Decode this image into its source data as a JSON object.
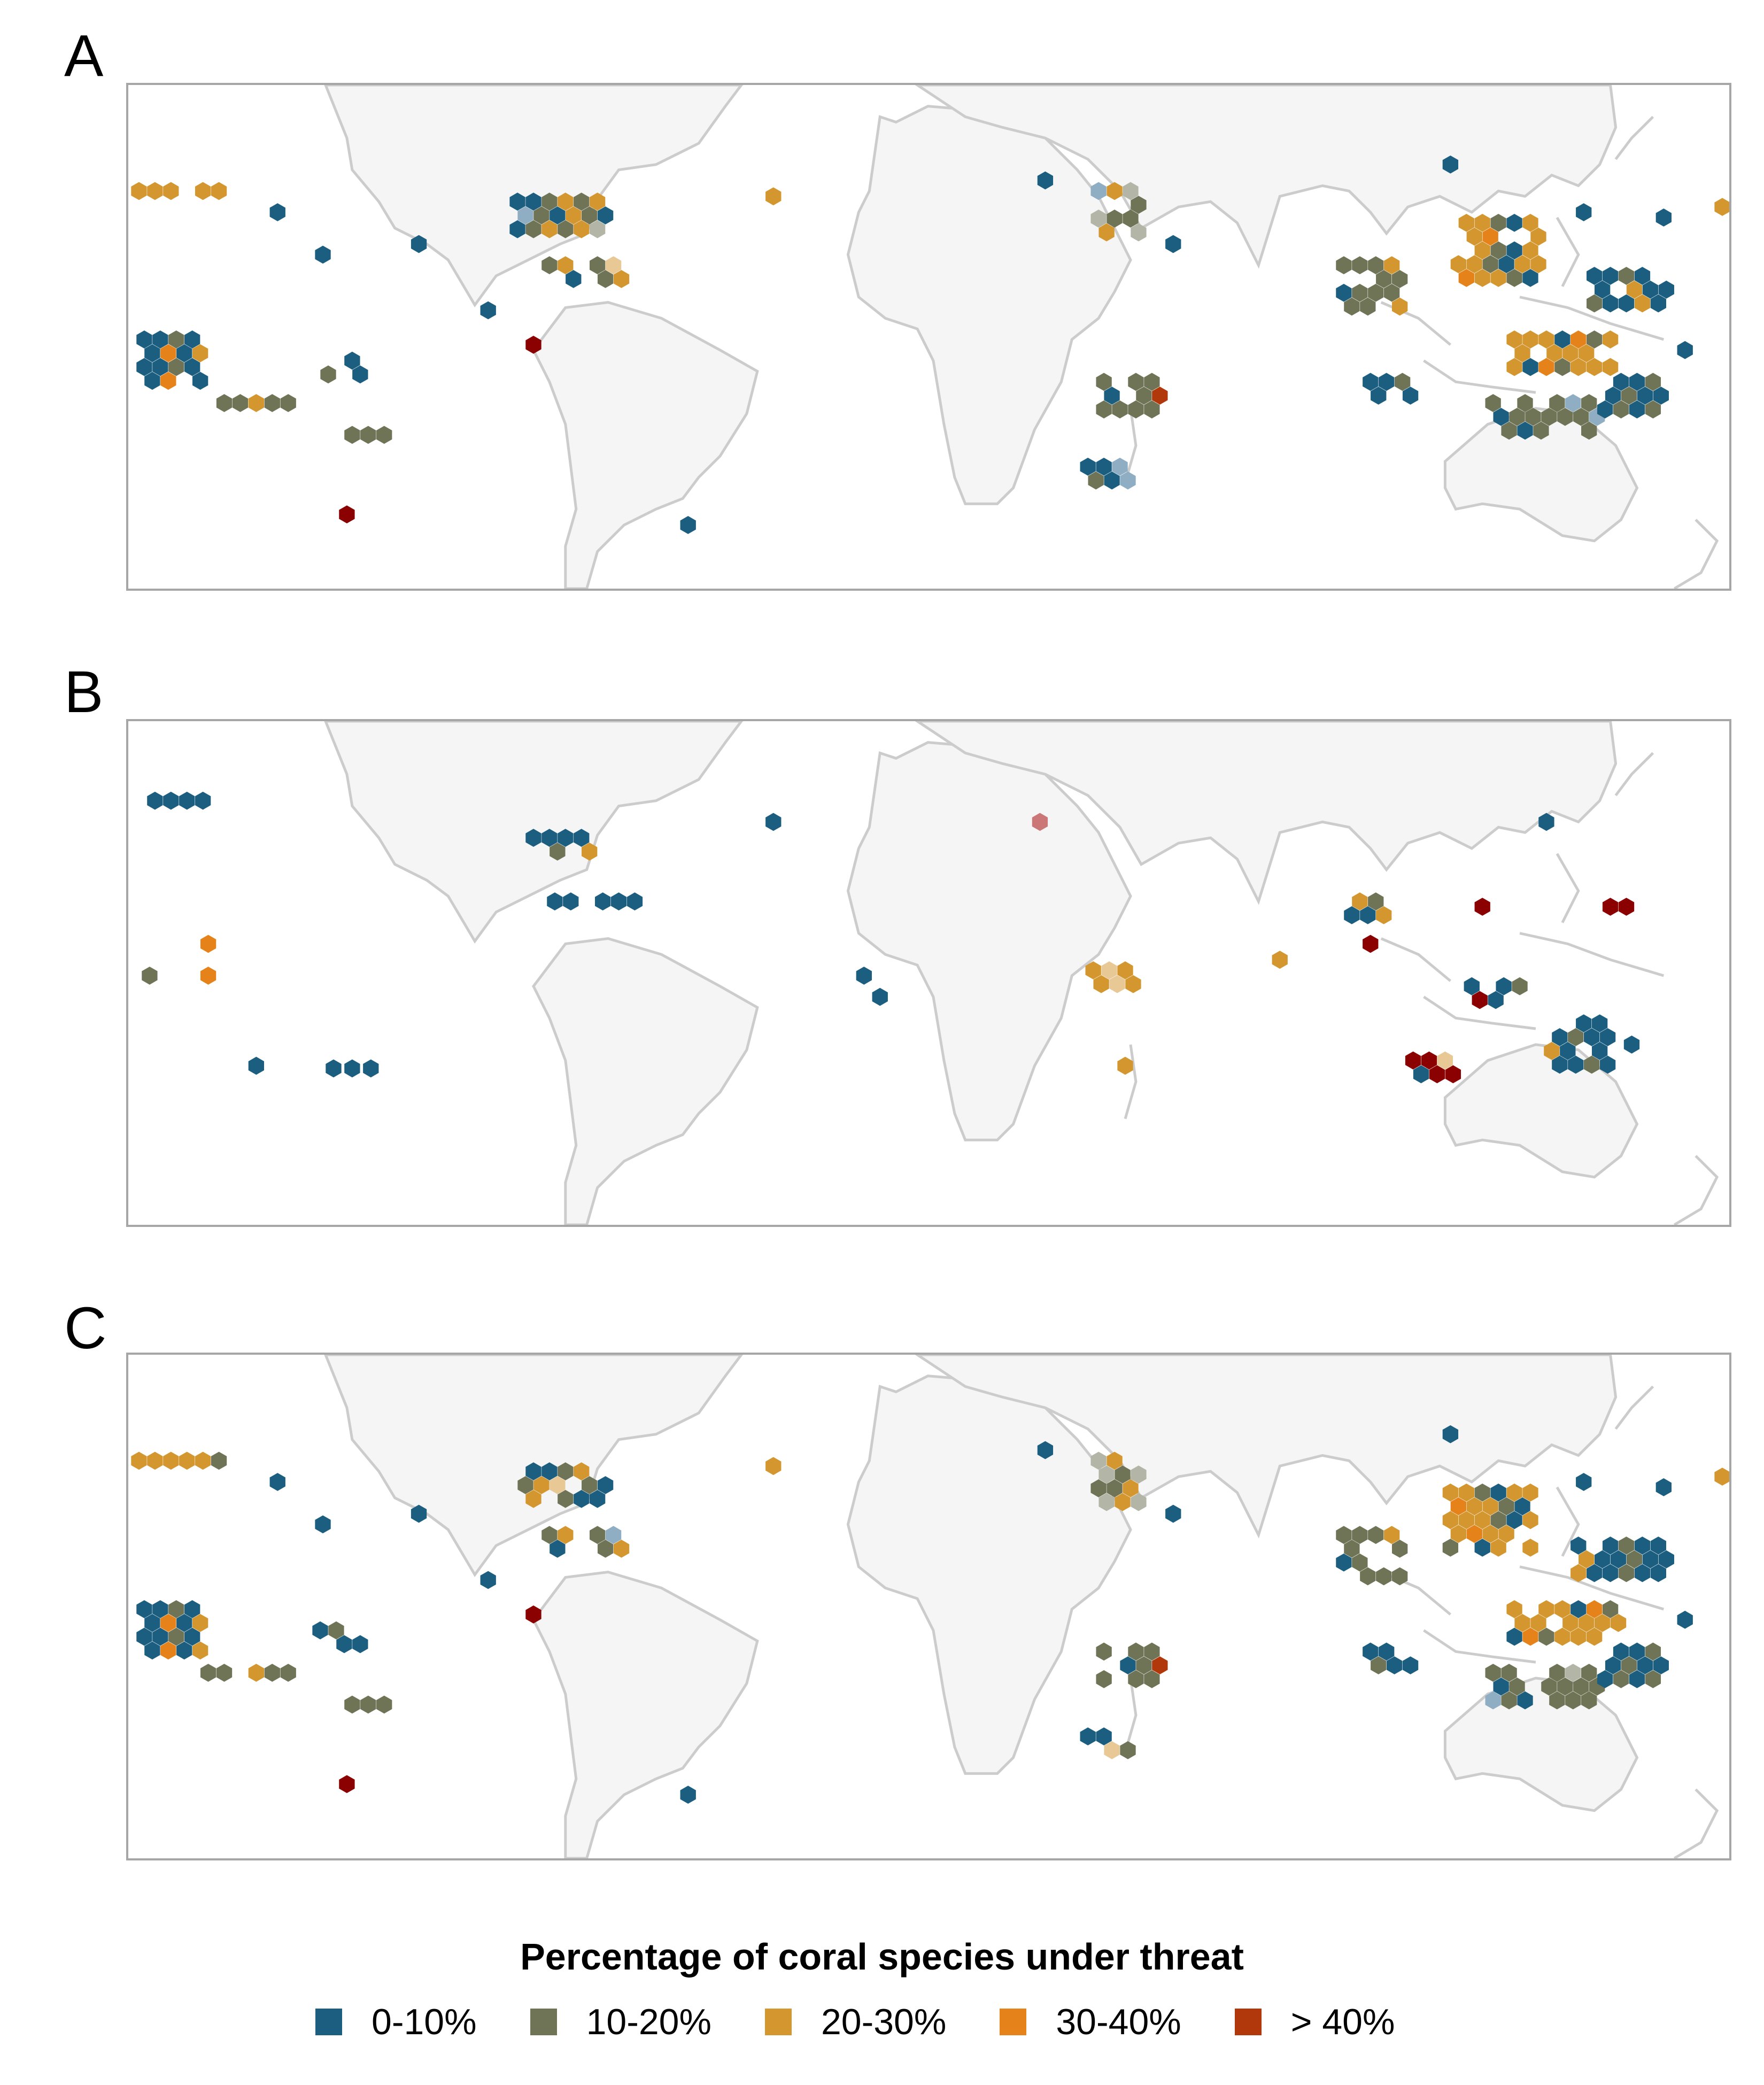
{
  "panels": [
    {
      "label": "A"
    },
    {
      "label": "B"
    },
    {
      "label": "C"
    }
  ],
  "legend": {
    "title": "Percentage of coral species under threat",
    "items": [
      {
        "label": "0-10%",
        "color": "#1b5e80"
      },
      {
        "label": "10-20%",
        "color": "#6e7455"
      },
      {
        "label": "20-30%",
        "color": "#d4962e"
      },
      {
        "label": "30-40%",
        "color": "#e5821a"
      },
      {
        "label": "> 40%",
        "color": "#b0380b"
      }
    ]
  },
  "colors": {
    "land": "#f5f5f5",
    "coast": "#cccccc",
    "frame": "#a6a6a6",
    "dark_red": "#8b0000"
  }
}
